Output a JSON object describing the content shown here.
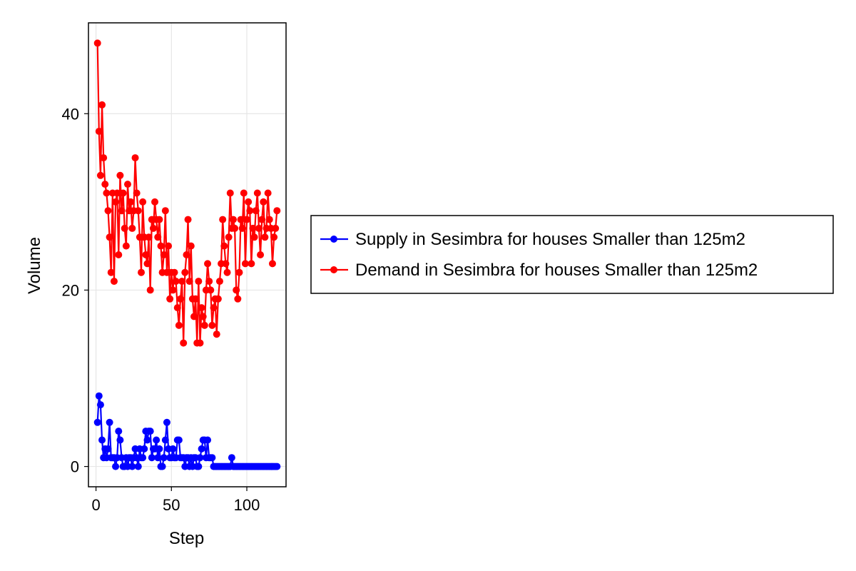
{
  "chart_data": {
    "type": "line",
    "xlabel": "Step",
    "ylabel": "Volume",
    "xlim": [
      -5,
      126
    ],
    "ylim": [
      -2.3,
      50.3
    ],
    "xticks": [
      0,
      50,
      100
    ],
    "yticks": [
      0,
      20,
      40
    ],
    "grid": true,
    "legend_position": "right",
    "x": [
      1,
      2,
      3,
      4,
      5,
      6,
      7,
      8,
      9,
      10,
      11,
      12,
      13,
      14,
      15,
      16,
      17,
      18,
      19,
      20,
      21,
      22,
      23,
      24,
      25,
      26,
      27,
      28,
      29,
      30,
      31,
      32,
      33,
      34,
      35,
      36,
      37,
      38,
      39,
      40,
      41,
      42,
      43,
      44,
      45,
      46,
      47,
      48,
      49,
      50,
      51,
      52,
      53,
      54,
      55,
      56,
      57,
      58,
      59,
      60,
      61,
      62,
      63,
      64,
      65,
      66,
      67,
      68,
      69,
      70,
      71,
      72,
      73,
      74,
      75,
      76,
      77,
      78,
      79,
      80,
      81,
      82,
      83,
      84,
      85,
      86,
      87,
      88,
      89,
      90,
      91,
      92,
      93,
      94,
      95,
      96,
      97,
      98,
      99,
      100,
      101,
      102,
      103,
      104,
      105,
      106,
      107,
      108,
      109,
      110,
      111,
      112,
      113,
      114,
      115,
      116,
      117,
      118,
      119,
      120
    ],
    "series": [
      {
        "name": "Supply in Sesimbra for houses Smaller than 125m2",
        "color": "#0000ff",
        "values": [
          5,
          8,
          7,
          3,
          1,
          2,
          1,
          2,
          5,
          1,
          1,
          1,
          0,
          1,
          4,
          3,
          1,
          0,
          0,
          1,
          0,
          1,
          1,
          0,
          1,
          2,
          1,
          0,
          2,
          1,
          1,
          2,
          4,
          3,
          4,
          4,
          1,
          2,
          2,
          3,
          1,
          2,
          0,
          0,
          1,
          3,
          5,
          2,
          1,
          1,
          2,
          1,
          1,
          3,
          3,
          1,
          1,
          1,
          0,
          1,
          1,
          0,
          1,
          0,
          1,
          1,
          0,
          0,
          1,
          2,
          3,
          3,
          1,
          3,
          1,
          1,
          1,
          0,
          0,
          0,
          0,
          0,
          0,
          0,
          0,
          0,
          0,
          0,
          0,
          1,
          0,
          0,
          0,
          0,
          0,
          0,
          0,
          0,
          0,
          0,
          0,
          0,
          0,
          0,
          0,
          0,
          0,
          0,
          0,
          0,
          0,
          0,
          0,
          0,
          0,
          0,
          0,
          0,
          0,
          0
        ]
      },
      {
        "name": "Demand in Sesimbra for houses Smaller than 125m2",
        "color": "#ff0000",
        "values": [
          48,
          38,
          33,
          41,
          35,
          32,
          31,
          29,
          26,
          22,
          31,
          21,
          30,
          31,
          24,
          33,
          29,
          31,
          27,
          25,
          32,
          29,
          30,
          27,
          29,
          35,
          31,
          29,
          26,
          22,
          30,
          26,
          24,
          23,
          26,
          20,
          28,
          27,
          30,
          28,
          26,
          28,
          25,
          22,
          24,
          29,
          22,
          25,
          19,
          22,
          20,
          22,
          21,
          18,
          16,
          19,
          21,
          14,
          22,
          24,
          28,
          21,
          25,
          19,
          17,
          19,
          14,
          21,
          14,
          18,
          17,
          16,
          20,
          23,
          21,
          20,
          16,
          18,
          19,
          15,
          19,
          21,
          23,
          28,
          25,
          23,
          22,
          26,
          31,
          27,
          28,
          27,
          20,
          19,
          22,
          28,
          27,
          31,
          23,
          28,
          30,
          29,
          23,
          27,
          26,
          29,
          31,
          27,
          24,
          28,
          30,
          26,
          27,
          31,
          28,
          27,
          23,
          26,
          27,
          29
        ]
      }
    ]
  }
}
